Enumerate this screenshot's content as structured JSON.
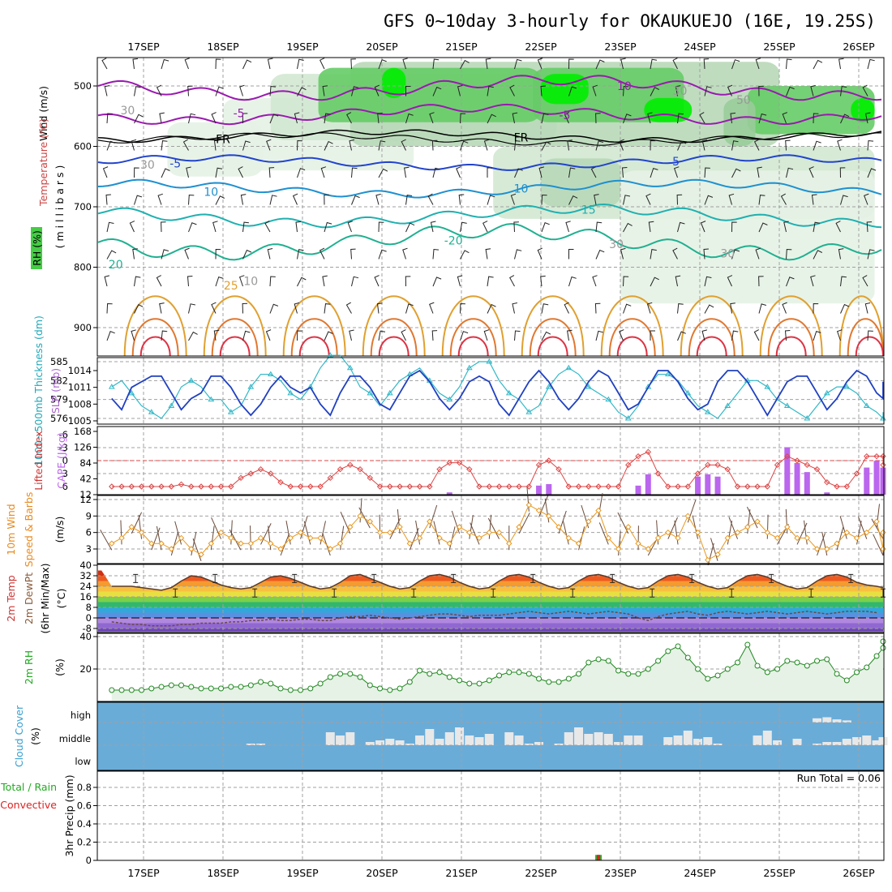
{
  "title": "GFS 0~10day 3-hourly for OKAUKUEJO (16E, 19.25S)",
  "dates": [
    "17SEP",
    "18SEP",
    "19SEP",
    "20SEP",
    "21SEP",
    "22SEP",
    "23SEP",
    "24SEP",
    "25SEP",
    "26SEP"
  ],
  "colors": {
    "grid": "#a0a0a0",
    "frame": "#000000",
    "rh_light": "#e6f2e6",
    "rh_mid": "#b8d8b8",
    "rh_green": "#66cc66",
    "rh_bright": "#00ee00",
    "cloud_bg": "#6aacd8",
    "cloud_bar": "#e8e8e8"
  },
  "upper_panel": {
    "label_wind": "Wind (m/s)",
    "label_temp": "Temperature (°C)",
    "label_rh": "RH (%)",
    "label_mb": "( m i l l i b a r s )",
    "pressure_ticks": [
      "500",
      "600",
      "700",
      "800",
      "900"
    ],
    "contour_labels": [
      {
        "text": "10",
        "color": "#9a1ab0",
        "p": 500,
        "d": 6.05
      },
      {
        "text": "-5",
        "color": "#9a1ab0",
        "p": 545,
        "d": 1.2
      },
      {
        "text": "-5",
        "color": "#9a1ab0",
        "p": 548,
        "d": 5.3
      },
      {
        "text": "FR",
        "color": "#000000",
        "p": 588,
        "d": 1.0
      },
      {
        "text": "FR",
        "color": "#000000",
        "p": 585,
        "d": 4.75
      },
      {
        "text": "-5",
        "color": "#2244cc",
        "p": 628,
        "d": 0.4
      },
      {
        "text": "5",
        "color": "#2244cc",
        "p": 625,
        "d": 6.7
      },
      {
        "text": "10",
        "color": "#1e90d0",
        "p": 675,
        "d": 0.85
      },
      {
        "text": "10",
        "color": "#1e90d0",
        "p": 670,
        "d": 4.75
      },
      {
        "text": "15",
        "color": "#20b0b0",
        "p": 705,
        "d": 5.6
      },
      {
        "text": "20",
        "color": "#20b090",
        "p": 795,
        "d": -0.35
      },
      {
        "text": "-20",
        "color": "#20b090",
        "p": 756,
        "d": 3.9
      },
      {
        "text": "25",
        "color": "#e0a030",
        "p": 830,
        "d": 1.1
      },
      {
        "text": "30",
        "color": "#999999",
        "p": 630,
        "d": 0.05
      },
      {
        "text": "30",
        "color": "#999999",
        "p": 508,
        "d": 6.75
      },
      {
        "text": "30",
        "color": "#999999",
        "p": 777,
        "d": 7.35
      },
      {
        "text": "50",
        "color": "#999999",
        "p": 523,
        "d": 7.55
      },
      {
        "text": "30",
        "color": "#999999",
        "p": 762,
        "d": 5.95
      },
      {
        "text": "30",
        "color": "#999999",
        "p": 540,
        "d": -0.2
      },
      {
        "text": "10",
        "color": "#999999",
        "p": 823,
        "d": 1.35
      }
    ]
  },
  "thickness_panel": {
    "label_thk": "1000~500mb Thickness (dm)",
    "label_slp": "SLP (mb)",
    "left_ticks": [
      "585",
      "582",
      "579",
      "576"
    ],
    "right_ticks": [
      "1014",
      "1011",
      "1008",
      "1005"
    ]
  },
  "cape_panel": {
    "label_li": "Lifted Index",
    "label_cape": "CAPE (J/kg)",
    "left_ticks": [
      "-6",
      "-3",
      "0",
      "3",
      "6"
    ],
    "right_ticks": [
      "168",
      "126",
      "84",
      "42",
      "12"
    ]
  },
  "wind10_panel": {
    "label_1": "10m Wind",
    "label_2": "Speed & Barbs",
    "label_units": "(m/s)",
    "ticks": [
      "12",
      "9",
      "6",
      "3"
    ]
  },
  "temp_panel": {
    "label_1": "2m Temp",
    "label_2": "2m DewPt",
    "label_3": "(6hr Min/Max)",
    "label_units": "(°C)",
    "ticks": [
      "40",
      "32",
      "24",
      "16",
      "8",
      "0",
      "-8"
    ]
  },
  "rh_panel": {
    "label": "2m RH",
    "label_units": "(%)",
    "ticks": [
      "40",
      "20"
    ]
  },
  "cloud_panel": {
    "label": "Cloud Cover",
    "label_units": "(%)",
    "levels": [
      "high",
      "middle",
      "low"
    ]
  },
  "precip_panel": {
    "label_1": "Total / Rain",
    "label_2": "Convective",
    "label_3": "3hr Precip (mm)",
    "run_total": "Run Total = 0.06",
    "ticks": [
      "0.8",
      "0.6",
      "0.4",
      "0.2",
      "0"
    ]
  },
  "chart_data": {
    "type": "meteogram",
    "time_axis": {
      "start_day_offset": -0.4,
      "end_day_offset": 9.15,
      "step_hours": 3
    },
    "slp_mb": [
      1009,
      1007,
      1011,
      1012,
      1013,
      1013,
      1010,
      1007,
      1009,
      1010,
      1013,
      1013,
      1011,
      1008,
      1006,
      1008,
      1011,
      1013,
      1011,
      1010,
      1011,
      1008,
      1006,
      1010,
      1013,
      1013,
      1011,
      1008,
      1007,
      1010,
      1013,
      1014,
      1012,
      1009,
      1007,
      1009,
      1012,
      1013,
      1012,
      1008,
      1006,
      1009,
      1012,
      1014,
      1012,
      1009,
      1007,
      1009,
      1012,
      1014,
      1013,
      1010,
      1007,
      1008,
      1011,
      1014,
      1014,
      1012,
      1009,
      1007,
      1008,
      1012,
      1014,
      1014,
      1012,
      1009,
      1006,
      1009,
      1012,
      1013,
      1013,
      1010,
      1007,
      1009,
      1012,
      1014,
      1013,
      1010,
      1009,
      1012
    ],
    "thickness_dm": [
      581,
      582,
      580,
      578,
      577,
      576,
      578,
      581,
      582,
      581,
      579,
      579,
      577,
      578,
      581,
      583,
      583,
      582,
      580,
      579,
      581,
      584,
      586,
      586,
      584,
      581,
      580,
      578,
      580,
      582,
      583,
      584,
      582,
      580,
      579,
      581,
      584,
      585,
      585,
      582,
      580,
      579,
      577,
      578,
      581,
      583,
      584,
      583,
      581,
      580,
      579,
      577,
      576,
      578,
      581,
      583,
      583,
      582,
      580,
      578,
      577,
      576,
      578,
      580,
      582,
      582,
      581,
      579,
      578,
      577,
      576,
      578,
      580,
      581,
      581,
      580,
      578,
      577,
      576,
      577
    ],
    "lifted_index": [
      6,
      6,
      6,
      6,
      6,
      6,
      6,
      5.5,
      6,
      6,
      6,
      6,
      6,
      4,
      3,
      2,
      3,
      5,
      6,
      6,
      6,
      6,
      4,
      2,
      1,
      2,
      4,
      6,
      6,
      6,
      6,
      6,
      6,
      2,
      0.5,
      0.5,
      2,
      6,
      6,
      6,
      6,
      6,
      6,
      1,
      0,
      2,
      6,
      6,
      6,
      6,
      6,
      6,
      1,
      -1,
      -2,
      3,
      6,
      6,
      6,
      3,
      1,
      1,
      2,
      6,
      6,
      6,
      6,
      1,
      -1,
      0,
      1,
      2,
      5,
      6,
      6,
      3,
      -1,
      -1,
      -1,
      1
    ],
    "cape_jkg": [
      0,
      0,
      0,
      0,
      0,
      0,
      0,
      0,
      0,
      0,
      0,
      0,
      0,
      0,
      0,
      0,
      0,
      0,
      0,
      0,
      0,
      0,
      0,
      0,
      0,
      0,
      0,
      0,
      0,
      0,
      0,
      0,
      0,
      0,
      6,
      0,
      0,
      0,
      0,
      0,
      0,
      0,
      0,
      24,
      28,
      0,
      0,
      0,
      0,
      0,
      0,
      0,
      0,
      24,
      54,
      0,
      0,
      0,
      0,
      48,
      54,
      48,
      0,
      0,
      0,
      0,
      0,
      0,
      126,
      84,
      60,
      0,
      6,
      0,
      0,
      0,
      72,
      90,
      72,
      54,
      48,
      0
    ],
    "wind10_speed_ms": [
      4,
      5,
      7,
      6,
      4,
      4,
      3,
      5,
      3,
      2,
      4,
      6,
      5,
      4,
      4,
      5,
      4,
      3,
      5,
      6,
      5,
      5,
      3,
      4,
      7,
      9,
      8,
      6,
      6,
      7,
      4,
      5,
      8,
      5,
      4,
      7,
      6,
      5,
      6,
      6,
      4,
      7,
      11,
      10,
      9,
      7,
      5,
      4,
      8,
      10,
      5,
      3,
      7,
      4,
      3,
      5,
      6,
      5,
      9,
      6,
      1,
      2,
      5,
      6,
      7,
      8,
      6,
      5,
      7,
      5,
      5,
      3,
      3,
      4,
      6,
      5,
      6,
      8,
      3,
      3,
      6
    ],
    "temp2m_c": [
      24,
      24,
      24,
      23,
      22,
      21,
      23,
      28,
      32,
      31,
      28,
      25,
      23,
      22,
      23,
      27,
      31,
      32,
      30,
      27,
      24,
      22,
      23,
      27,
      32,
      33,
      30,
      27,
      24,
      22,
      23,
      28,
      32,
      33,
      31,
      27,
      24,
      22,
      23,
      28,
      32,
      33,
      31,
      27,
      24,
      22,
      23,
      28,
      32,
      33,
      31,
      27,
      24,
      22,
      23,
      28,
      32,
      33,
      31,
      27,
      24,
      22,
      23,
      28,
      32,
      33,
      31,
      27,
      24,
      22,
      23,
      28,
      32,
      33,
      31,
      27,
      25,
      24,
      23
    ],
    "dewpt2m_c": [
      -3,
      -4,
      -5,
      -5,
      -6,
      -6,
      -6,
      -5,
      -5,
      -4,
      -4,
      -4,
      -3,
      -3,
      -2,
      -2,
      -1,
      -2,
      -2,
      -1,
      -1,
      -2,
      -2,
      0,
      1,
      1,
      2,
      1,
      0,
      -1,
      0,
      1,
      2,
      3,
      3,
      2,
      1,
      2,
      2,
      2,
      3,
      4,
      5,
      4,
      3,
      4,
      5,
      4,
      3,
      4,
      5,
      4,
      3,
      0,
      -2,
      1,
      3,
      4,
      5,
      3,
      2,
      4,
      5,
      4,
      3,
      4,
      5,
      4,
      3,
      4,
      5,
      4,
      3,
      4,
      5,
      5,
      5,
      4
    ],
    "rh2m_pct": [
      7,
      7,
      7,
      7,
      8,
      9,
      10,
      10,
      9,
      8,
      8,
      8,
      9,
      9,
      10,
      12,
      11,
      8,
      7,
      7,
      8,
      11,
      15,
      17,
      17,
      15,
      10,
      8,
      7,
      8,
      12,
      19,
      17,
      18,
      15,
      13,
      11,
      11,
      13,
      16,
      18,
      18,
      17,
      14,
      12,
      12,
      14,
      17,
      24,
      26,
      25,
      19,
      17,
      17,
      20,
      25,
      31,
      34,
      27,
      20,
      14,
      16,
      20,
      24,
      35,
      22,
      18,
      20,
      25,
      24,
      22,
      25,
      26,
      17,
      13,
      18,
      21,
      28,
      33,
      37
    ],
    "cloud_high_pct": [
      0,
      0,
      0,
      0,
      0,
      0,
      0,
      0,
      0,
      0,
      0,
      0,
      0,
      0,
      0,
      0,
      0,
      0,
      0,
      0,
      0,
      0,
      0,
      0,
      0,
      0,
      0,
      0,
      0,
      0,
      0,
      0,
      0,
      0,
      0,
      0,
      0,
      0,
      0,
      0,
      0,
      0,
      0,
      0,
      0,
      0,
      0,
      0,
      0,
      0,
      0,
      0,
      0,
      0,
      0,
      0,
      0,
      0,
      0,
      0,
      0,
      0,
      0,
      0,
      0,
      0,
      0,
      0,
      0,
      0,
      0,
      20,
      25,
      15,
      10,
      0,
      0,
      0,
      0,
      0
    ],
    "cloud_mid_pct": [
      0,
      0,
      0,
      0,
      0,
      0,
      0,
      0,
      0,
      0,
      0,
      0,
      0,
      0,
      5,
      5,
      0,
      0,
      0,
      0,
      0,
      0,
      40,
      30,
      40,
      0,
      10,
      15,
      20,
      15,
      5,
      30,
      50,
      20,
      40,
      55,
      30,
      25,
      35,
      0,
      40,
      30,
      5,
      10,
      0,
      5,
      40,
      55,
      35,
      40,
      35,
      10,
      30,
      30,
      0,
      0,
      25,
      30,
      45,
      20,
      25,
      5,
      0,
      0,
      0,
      30,
      45,
      15,
      0,
      20,
      0,
      5,
      10,
      10,
      20,
      25,
      30,
      15,
      25,
      10
    ],
    "cloud_low_pct": [
      0,
      0,
      0,
      0,
      0,
      0,
      0,
      0,
      0,
      0,
      0,
      0,
      0,
      0,
      0,
      0,
      0,
      0,
      0,
      0,
      0,
      0,
      0,
      0,
      0,
      0,
      0,
      0,
      0,
      0,
      0,
      0,
      0,
      0,
      0,
      0,
      0,
      0,
      0,
      0,
      0,
      0,
      0,
      0,
      0,
      0,
      0,
      0,
      0,
      0,
      0,
      0,
      0,
      0,
      0,
      0,
      0,
      0,
      0,
      0,
      0,
      0,
      0,
      0,
      0,
      0,
      0,
      0,
      0,
      0,
      0,
      0,
      0,
      0,
      0,
      0,
      0,
      0,
      0,
      0
    ],
    "precip_3hr_mm": {
      "total_index": 49,
      "total": 0.06,
      "convective": 0.06
    },
    "panels": [
      "upper_air",
      "thickness_slp",
      "li_cape",
      "wind10",
      "temp2m",
      "rh2m",
      "cloud",
      "precip"
    ]
  }
}
